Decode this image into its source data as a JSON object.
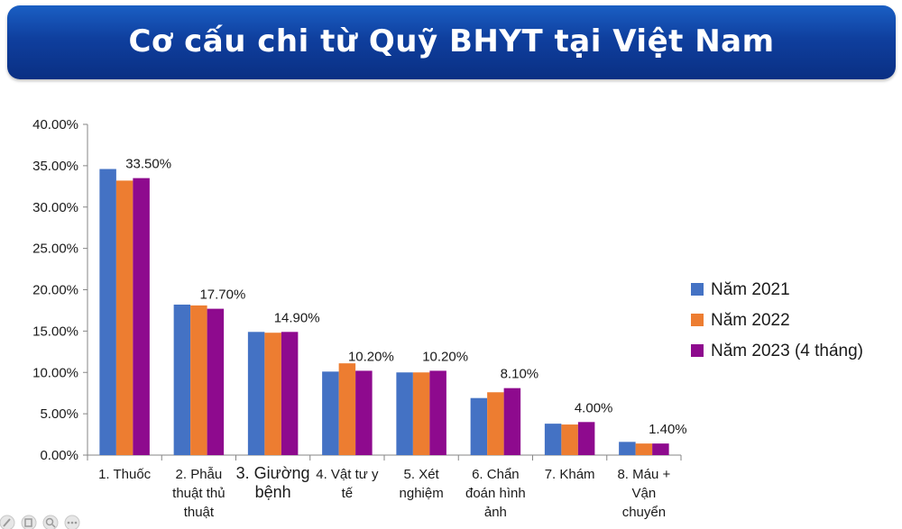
{
  "header": {
    "title": "Cơ cấu chi từ Quỹ BHYT tại Việt Nam"
  },
  "chart_data": {
    "type": "bar",
    "title": "Cơ cấu chi từ Quỹ BHYT tại Việt Nam",
    "xlabel": "",
    "ylabel": "",
    "ylim": [
      0,
      40
    ],
    "yticks": [
      "0.00%",
      "5.00%",
      "10.00%",
      "15.00%",
      "20.00%",
      "25.00%",
      "30.00%",
      "35.00%",
      "40.00%"
    ],
    "grid": false,
    "legend_position": "right",
    "categories": [
      [
        "1. Thuốc"
      ],
      [
        "2. Phẫu",
        "thuật thủ",
        "thuật"
      ],
      [
        "3. Giường",
        "bệnh"
      ],
      [
        "4. Vật tư y",
        "tế"
      ],
      [
        "5. Xét",
        "nghiệm"
      ],
      [
        "6. Chẩn",
        "đoán hình",
        "ảnh"
      ],
      [
        "7. Khám"
      ],
      [
        "8. Máu +",
        "Vận",
        "chuyển"
      ]
    ],
    "series": [
      {
        "name": "Năm 2021",
        "color": "#4472c4",
        "values": [
          34.6,
          18.2,
          14.9,
          10.1,
          10.0,
          6.9,
          3.8,
          1.6
        ]
      },
      {
        "name": "Năm 2022",
        "color": "#ed7d31",
        "values": [
          33.2,
          18.1,
          14.8,
          11.1,
          10.0,
          7.6,
          3.7,
          1.4
        ]
      },
      {
        "name": "Năm 2023 (4 tháng)",
        "color": "#8e0a8e",
        "values": [
          33.5,
          17.7,
          14.9,
          10.2,
          10.2,
          8.1,
          4.0,
          1.4
        ]
      }
    ],
    "data_labels": [
      "33.50%",
      "17.70%",
      "14.90%",
      "10.20%",
      "10.20%",
      "8.10%",
      "4.00%",
      "1.40%"
    ]
  },
  "icons": [
    "pen-icon",
    "copy-icon",
    "zoom-icon",
    "more-icon"
  ]
}
